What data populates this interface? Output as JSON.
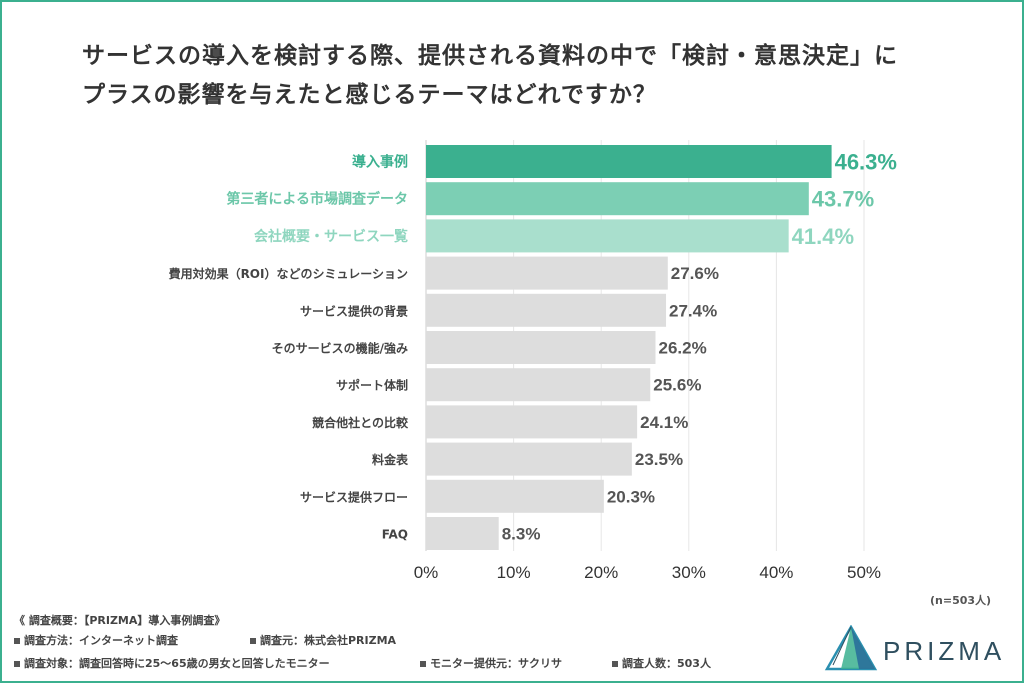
{
  "title": {
    "line1": "サービスの導入を検討する際、提供される資料の中で「検討・意思決定」に",
    "line2": "プラスの影響を与えたと感じるテーマはどれですか？"
  },
  "chart_data": {
    "type": "bar",
    "orientation": "horizontal",
    "categories": [
      "導入事例",
      "第三者による市場調査データ",
      "会社概要・サービス一覧",
      "費用対効果（ROI）などのシミュレーション",
      "サービス提供の背景",
      "そのサービスの機能/強み",
      "サポート体制",
      "競合他社との比較",
      "料金表",
      "サービス提供フロー",
      "FAQ"
    ],
    "values": [
      46.3,
      43.7,
      41.4,
      27.6,
      27.4,
      26.2,
      25.6,
      24.1,
      23.5,
      20.3,
      8.3
    ],
    "value_labels": [
      "46.3%",
      "43.7%",
      "41.4%",
      "27.6%",
      "27.4%",
      "26.2%",
      "25.6%",
      "24.1%",
      "23.5%",
      "20.3%",
      "8.3%"
    ],
    "x_ticks": [
      "0%",
      "10%",
      "20%",
      "30%",
      "40%",
      "50%"
    ],
    "xlim": [
      0,
      50
    ],
    "grid": true,
    "highlight_colors": [
      "#3bb08f",
      "#7ccfb4",
      "#a9dfcd"
    ],
    "default_color": "#dddddd",
    "highlight_label_colors": [
      "#3bb08f",
      "#6cc7a9",
      "#8fd6bf"
    ]
  },
  "sample_size": "(n=503人)",
  "footnotes": {
    "heading": "《 調査概要：【PRIZMA】導入事例調査》",
    "method": "調査方法：インターネット調査",
    "source": "調査元：株式会社PRIZMA",
    "target": "調査対象：調査回答時に25〜65歳の男女と回答したモニター",
    "provider": "モニター提供元：サクリサ",
    "respondents": "調査人数：503人"
  },
  "logo": {
    "text": "PRIZMA"
  }
}
